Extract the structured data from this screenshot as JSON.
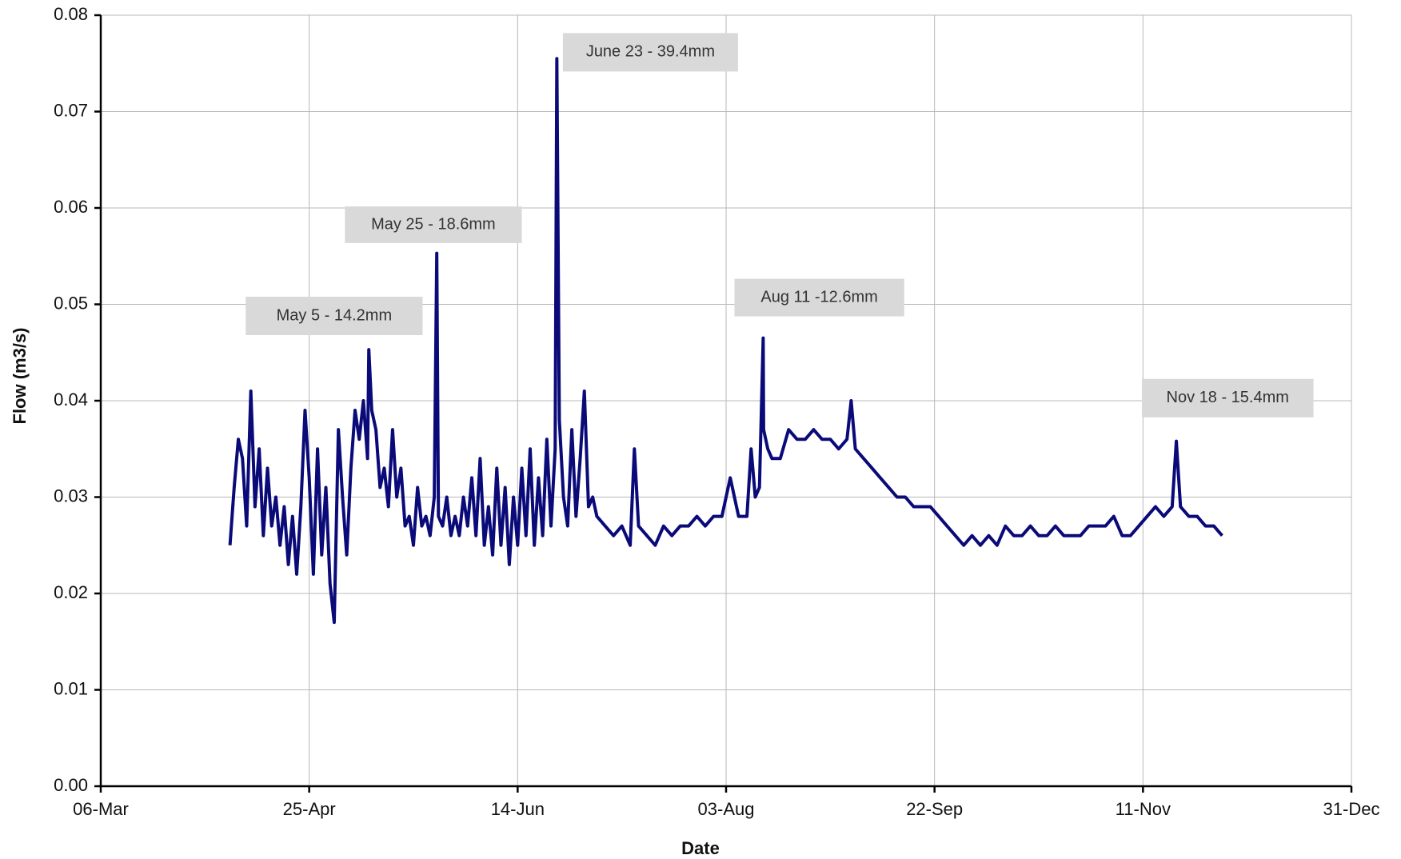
{
  "chart_data": {
    "type": "line",
    "x_label": "Date",
    "y_label": "Flow (m3/s)",
    "xlim": [
      65,
      365
    ],
    "xticks": [
      {
        "value": 65,
        "label": "06-Mar"
      },
      {
        "value": 115,
        "label": "25-Apr"
      },
      {
        "value": 165,
        "label": "14-Jun"
      },
      {
        "value": 215,
        "label": "03-Aug"
      },
      {
        "value": 265,
        "label": "22-Sep"
      },
      {
        "value": 315,
        "label": "11-Nov"
      },
      {
        "value": 365,
        "label": "31-Dec"
      }
    ],
    "ylim": [
      0,
      0.08
    ],
    "yticks": [
      {
        "value": 0,
        "label": "0.00"
      },
      0.01,
      0.02,
      0.03,
      0.04,
      0.05,
      0.06,
      0.07,
      0.08
    ],
    "grid": true,
    "annotations": [
      "May 5 - 14.2mm",
      "May 25 - 18.6mm",
      "June 23 - 39.4mm",
      "Aug 11  -12.6mm",
      "Nov 18 - 15.4mm"
    ],
    "series": [
      {
        "name": "Flow",
        "color": "#0a0a78",
        "x": [
          96,
          97,
          98,
          99,
          100,
          101,
          102,
          103,
          104,
          105,
          106,
          107,
          108,
          109,
          110,
          111,
          112,
          113,
          114,
          115,
          116,
          117,
          118,
          119,
          120,
          121,
          122,
          123,
          124,
          125,
          126,
          127,
          128,
          129,
          129.3,
          130,
          131,
          132,
          133,
          134,
          135,
          136,
          137,
          138,
          139,
          140,
          141,
          142,
          143,
          144,
          145,
          145.6,
          146,
          147,
          148,
          149,
          150,
          151,
          152,
          153,
          154,
          155,
          156,
          157,
          158,
          159,
          160,
          161,
          162,
          163,
          164,
          165,
          166,
          167,
          168,
          169,
          170,
          171,
          172,
          173,
          174,
          174.4,
          175,
          176,
          177,
          178,
          179,
          180,
          181,
          182,
          183,
          184,
          186,
          188,
          190,
          192,
          193,
          194,
          196,
          198,
          200,
          202,
          204,
          206,
          208,
          210,
          212,
          214,
          216,
          218,
          220,
          221,
          222,
          223,
          223.9,
          224,
          225,
          226,
          228,
          230,
          232,
          234,
          236,
          238,
          240,
          242,
          244,
          245,
          246,
          248,
          250,
          252,
          254,
          256,
          258,
          260,
          262,
          264,
          266,
          268,
          270,
          272,
          274,
          276,
          278,
          280,
          282,
          284,
          286,
          288,
          290,
          292,
          294,
          296,
          298,
          300,
          302,
          304,
          306,
          308,
          310,
          312,
          314,
          316,
          318,
          320,
          322,
          323,
          324,
          326,
          328,
          330,
          332,
          334
        ],
        "values": [
          0.025,
          0.031,
          0.036,
          0.034,
          0.027,
          0.041,
          0.029,
          0.035,
          0.026,
          0.033,
          0.027,
          0.03,
          0.025,
          0.029,
          0.023,
          0.028,
          0.022,
          0.029,
          0.039,
          0.032,
          0.022,
          0.035,
          0.024,
          0.031,
          0.021,
          0.017,
          0.037,
          0.03,
          0.024,
          0.033,
          0.039,
          0.036,
          0.04,
          0.034,
          0.0453,
          0.039,
          0.037,
          0.031,
          0.033,
          0.029,
          0.037,
          0.03,
          0.033,
          0.027,
          0.028,
          0.025,
          0.031,
          0.027,
          0.028,
          0.026,
          0.03,
          0.0553,
          0.028,
          0.027,
          0.03,
          0.026,
          0.028,
          0.026,
          0.03,
          0.027,
          0.032,
          0.026,
          0.034,
          0.025,
          0.029,
          0.024,
          0.033,
          0.025,
          0.031,
          0.023,
          0.03,
          0.025,
          0.033,
          0.026,
          0.035,
          0.025,
          0.032,
          0.026,
          0.036,
          0.027,
          0.035,
          0.0755,
          0.038,
          0.03,
          0.027,
          0.037,
          0.028,
          0.034,
          0.041,
          0.029,
          0.03,
          0.028,
          0.027,
          0.026,
          0.027,
          0.025,
          0.035,
          0.027,
          0.026,
          0.025,
          0.027,
          0.026,
          0.027,
          0.027,
          0.028,
          0.027,
          0.028,
          0.028,
          0.032,
          0.028,
          0.028,
          0.035,
          0.03,
          0.031,
          0.0465,
          0.037,
          0.035,
          0.034,
          0.034,
          0.037,
          0.036,
          0.036,
          0.037,
          0.036,
          0.036,
          0.035,
          0.036,
          0.04,
          0.035,
          0.034,
          0.033,
          0.032,
          0.031,
          0.03,
          0.03,
          0.029,
          0.029,
          0.029,
          0.028,
          0.027,
          0.026,
          0.025,
          0.026,
          0.025,
          0.026,
          0.025,
          0.027,
          0.026,
          0.026,
          0.027,
          0.026,
          0.026,
          0.027,
          0.026,
          0.026,
          0.026,
          0.027,
          0.027,
          0.027,
          0.028,
          0.026,
          0.026,
          0.027,
          0.028,
          0.029,
          0.028,
          0.029,
          0.0358,
          0.029,
          0.028,
          0.028,
          0.027,
          0.027,
          0.026
        ]
      }
    ]
  }
}
